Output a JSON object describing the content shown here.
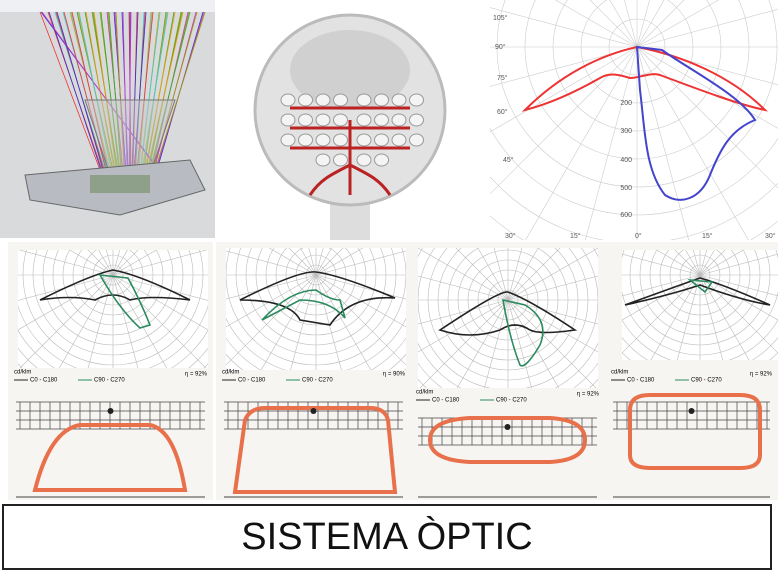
{
  "title": "SISTEMA ÒPTIC",
  "top_polar": {
    "angle_labels": [
      "105°",
      "90°",
      "75°",
      "60°",
      "45°",
      "30°",
      "15°",
      "0°",
      "15°",
      "30°"
    ],
    "radial_labels": [
      "200",
      "300",
      "400",
      "500",
      "600"
    ]
  },
  "diagrams": [
    {
      "unit": "cd/klm",
      "legend": [
        "C0 - C180",
        "C90 - C270"
      ],
      "efficiency": "η = 92%"
    },
    {
      "unit": "cd/klm",
      "legend": [
        "C0 - C180",
        "C90 - C270"
      ],
      "efficiency": "η = 90%"
    },
    {
      "unit": "cd/klm",
      "legend": [
        "C0 - C180",
        "C90 - C270"
      ],
      "efficiency": "η = 92%"
    },
    {
      "unit": "cd/klm",
      "legend": [
        "C0 - C180",
        "C90 - C270"
      ],
      "efficiency": "η = 92%"
    }
  ]
}
